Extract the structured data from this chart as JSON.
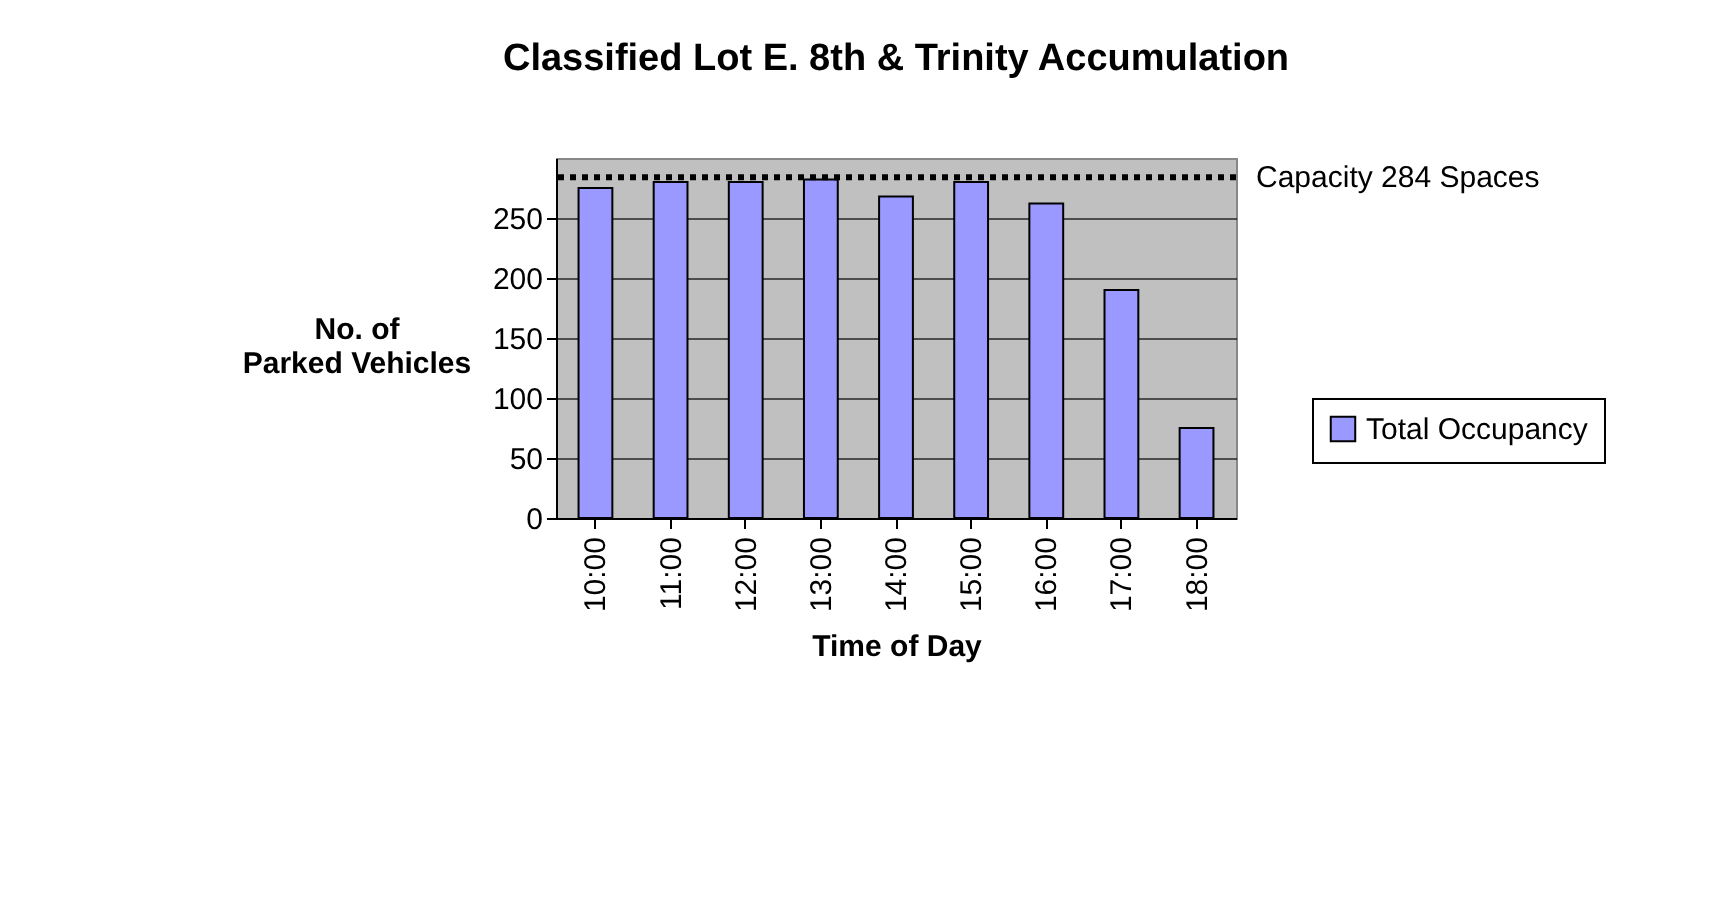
{
  "chart_data": {
    "type": "bar",
    "title": "Classified Lot E. 8th & Trinity Accumulation",
    "xlabel": "Time of Day",
    "ylabel": "No. of Parked Vehicles",
    "categories": [
      "10:00",
      "11:00",
      "12:00",
      "13:00",
      "14:00",
      "15:00",
      "16:00",
      "17:00",
      "18:00"
    ],
    "series": [
      {
        "name": "Total Occupancy",
        "color": "#9999ff",
        "values": [
          275,
          280,
          280,
          282,
          268,
          280,
          262,
          190,
          75
        ]
      }
    ],
    "ylim": [
      0,
      300
    ],
    "yticks": [
      0,
      50,
      100,
      150,
      200,
      250
    ],
    "grid": "y",
    "legend": "right",
    "ref_lines": [
      {
        "axis": "y",
        "value": 284,
        "label": "Capacity 284 Spaces",
        "color": "#000000",
        "line_style": "dotted"
      }
    ]
  }
}
